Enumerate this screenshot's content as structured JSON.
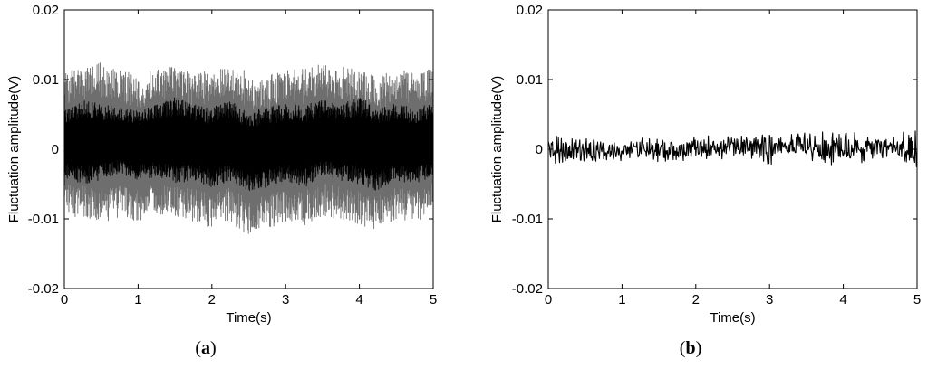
{
  "chart_data": [
    {
      "type": "line",
      "panel_label": {
        "open": "(",
        "letter": "a",
        "close": ")"
      },
      "xlabel": "Time(s)",
      "ylabel": "Fluctuation amplitude(V)",
      "xlim": [
        0,
        5
      ],
      "ylim": [
        -0.02,
        0.02
      ],
      "xticks": [
        0,
        1,
        2,
        3,
        4,
        5
      ],
      "xtick_labels": [
        "0",
        "1",
        "2",
        "3",
        "4",
        "5"
      ],
      "yticks": [
        -0.02,
        -0.01,
        0,
        0.01,
        0.02
      ],
      "ytick_labels": [
        "-0.02",
        "-0.01",
        "0",
        "0.01",
        "0.02"
      ],
      "grid": false,
      "series": [
        {
          "style": "envelope",
          "color": "#6e6e6e",
          "x": [
            0,
            0.25,
            0.5,
            0.75,
            1.0,
            1.25,
            1.5,
            1.75,
            2.0,
            2.25,
            2.5,
            2.75,
            3.0,
            3.25,
            3.5,
            3.75,
            4.0,
            4.25,
            4.5,
            4.75,
            5.0
          ],
          "upper": [
            0.011,
            0.012,
            0.0125,
            0.0115,
            0.0105,
            0.0115,
            0.012,
            0.011,
            0.0115,
            0.0125,
            0.011,
            0.0105,
            0.012,
            0.0115,
            0.0125,
            0.012,
            0.0115,
            0.0105,
            0.0115,
            0.011,
            0.012
          ],
          "lower": [
            -0.0095,
            -0.01,
            -0.0105,
            -0.01,
            -0.0105,
            -0.0095,
            -0.01,
            -0.0105,
            -0.0115,
            -0.0105,
            -0.0125,
            -0.0115,
            -0.0105,
            -0.011,
            -0.0095,
            -0.0105,
            -0.011,
            -0.0115,
            -0.01,
            -0.0105,
            -0.0095
          ]
        },
        {
          "style": "envelope",
          "color": "#000000",
          "x": [
            0,
            0.25,
            0.5,
            0.75,
            1.0,
            1.25,
            1.5,
            1.75,
            2.0,
            2.25,
            2.5,
            2.75,
            3.0,
            3.25,
            3.5,
            3.75,
            4.0,
            4.25,
            4.5,
            4.75,
            5.0
          ],
          "upper": [
            0.006,
            0.007,
            0.0065,
            0.006,
            0.0055,
            0.0065,
            0.0075,
            0.0065,
            0.006,
            0.007,
            0.0055,
            0.006,
            0.0065,
            0.0065,
            0.007,
            0.0065,
            0.0075,
            0.006,
            0.0065,
            0.006,
            0.0065
          ],
          "lower": [
            -0.004,
            -0.005,
            -0.0045,
            -0.0035,
            -0.0045,
            -0.004,
            -0.005,
            -0.0045,
            -0.0055,
            -0.0045,
            -0.006,
            -0.0055,
            -0.0045,
            -0.0055,
            -0.004,
            -0.0045,
            -0.005,
            -0.006,
            -0.0045,
            -0.005,
            -0.004
          ]
        }
      ]
    },
    {
      "type": "line",
      "panel_label": {
        "open": "(",
        "letter": "b",
        "close": ")"
      },
      "xlabel": "Time(s)",
      "ylabel": "Fluctuation amplitude(V)",
      "xlim": [
        0,
        5
      ],
      "ylim": [
        -0.02,
        0.02
      ],
      "xticks": [
        0,
        1,
        2,
        3,
        4,
        5
      ],
      "xtick_labels": [
        "0",
        "1",
        "2",
        "3",
        "4",
        "5"
      ],
      "yticks": [
        -0.02,
        -0.01,
        0,
        0.01,
        0.02
      ],
      "ytick_labels": [
        "-0.02",
        "-0.01",
        "0",
        "0.01",
        "0.02"
      ],
      "grid": false,
      "series": [
        {
          "style": "signal",
          "color": "#000000",
          "x": [
            0,
            0.25,
            0.5,
            0.75,
            1.0,
            1.25,
            1.5,
            1.75,
            2.0,
            2.25,
            2.5,
            2.75,
            3.0,
            3.25,
            3.5,
            3.75,
            4.0,
            4.25,
            4.5,
            4.75,
            5.0
          ],
          "upper": [
            0.002,
            0.0025,
            0.002,
            0.0015,
            0.0015,
            0.002,
            0.002,
            0.0015,
            0.002,
            0.002,
            0.0025,
            0.002,
            0.0025,
            0.002,
            0.0035,
            0.0025,
            0.003,
            0.0025,
            0.002,
            0.0025,
            0.003
          ],
          "lower": [
            -0.0025,
            -0.003,
            -0.0025,
            -0.002,
            -0.002,
            -0.0015,
            -0.002,
            -0.0025,
            -0.002,
            -0.002,
            -0.0015,
            -0.002,
            -0.0025,
            -0.002,
            -0.0015,
            -0.0025,
            -0.002,
            -0.0025,
            -0.0015,
            -0.002,
            -0.003
          ]
        }
      ]
    }
  ]
}
